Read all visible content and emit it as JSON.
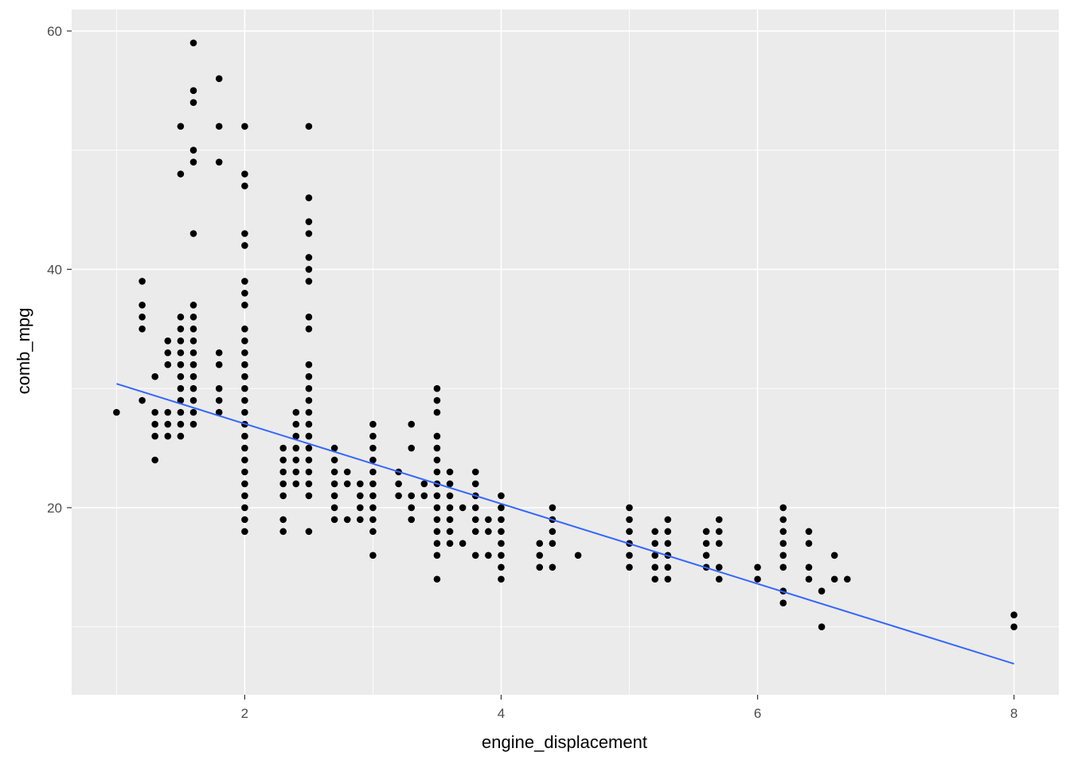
{
  "chart_data": {
    "type": "scatter",
    "title": "",
    "xlabel": "engine_displacement",
    "ylabel": "comb_mpg",
    "xlim": [
      0.65,
      8.35
    ],
    "ylim": [
      4.3,
      61.8
    ],
    "x_ticks": [
      2,
      4,
      6,
      8
    ],
    "y_ticks": [
      20,
      40,
      60
    ],
    "x_ticks_minor": [
      1,
      3,
      5,
      7
    ],
    "y_ticks_minor": [
      10,
      30,
      50
    ],
    "grid": true,
    "legend": "none",
    "colors": {
      "panel": "#EBEBEB",
      "grid": "#FFFFFF",
      "points": "#000000",
      "trend": "#3366FF"
    },
    "points": [
      [
        1.0,
        28
      ],
      [
        1.2,
        39
      ],
      [
        1.2,
        37
      ],
      [
        1.2,
        36
      ],
      [
        1.2,
        35
      ],
      [
        1.2,
        29
      ],
      [
        1.3,
        31
      ],
      [
        1.3,
        28
      ],
      [
        1.3,
        27
      ],
      [
        1.3,
        26
      ],
      [
        1.3,
        24
      ],
      [
        1.4,
        34
      ],
      [
        1.4,
        33
      ],
      [
        1.4,
        32
      ],
      [
        1.4,
        28
      ],
      [
        1.4,
        27
      ],
      [
        1.4,
        26
      ],
      [
        1.5,
        52
      ],
      [
        1.5,
        48
      ],
      [
        1.5,
        36
      ],
      [
        1.5,
        35
      ],
      [
        1.5,
        34
      ],
      [
        1.5,
        33
      ],
      [
        1.5,
        32
      ],
      [
        1.5,
        31
      ],
      [
        1.5,
        30
      ],
      [
        1.5,
        29
      ],
      [
        1.5,
        28
      ],
      [
        1.5,
        27
      ],
      [
        1.5,
        26
      ],
      [
        1.6,
        59
      ],
      [
        1.6,
        55
      ],
      [
        1.6,
        54
      ],
      [
        1.6,
        50
      ],
      [
        1.6,
        49
      ],
      [
        1.6,
        43
      ],
      [
        1.6,
        37
      ],
      [
        1.6,
        36
      ],
      [
        1.6,
        35
      ],
      [
        1.6,
        34
      ],
      [
        1.6,
        33
      ],
      [
        1.6,
        32
      ],
      [
        1.6,
        31
      ],
      [
        1.6,
        30
      ],
      [
        1.6,
        29
      ],
      [
        1.6,
        28
      ],
      [
        1.6,
        27
      ],
      [
        1.8,
        56
      ],
      [
        1.8,
        52
      ],
      [
        1.8,
        49
      ],
      [
        1.8,
        33
      ],
      [
        1.8,
        32
      ],
      [
        1.8,
        30
      ],
      [
        1.8,
        29
      ],
      [
        1.8,
        28
      ],
      [
        2.0,
        52
      ],
      [
        2.0,
        48
      ],
      [
        2.0,
        47
      ],
      [
        2.0,
        43
      ],
      [
        2.0,
        42
      ],
      [
        2.0,
        39
      ],
      [
        2.0,
        38
      ],
      [
        2.0,
        37
      ],
      [
        2.0,
        35
      ],
      [
        2.0,
        34
      ],
      [
        2.0,
        33
      ],
      [
        2.0,
        32
      ],
      [
        2.0,
        31
      ],
      [
        2.0,
        30
      ],
      [
        2.0,
        29
      ],
      [
        2.0,
        28
      ],
      [
        2.0,
        27
      ],
      [
        2.0,
        26
      ],
      [
        2.0,
        25
      ],
      [
        2.0,
        24
      ],
      [
        2.0,
        23
      ],
      [
        2.0,
        22
      ],
      [
        2.0,
        21
      ],
      [
        2.0,
        20
      ],
      [
        2.0,
        19
      ],
      [
        2.0,
        18
      ],
      [
        2.3,
        25
      ],
      [
        2.3,
        24
      ],
      [
        2.3,
        23
      ],
      [
        2.3,
        22
      ],
      [
        2.3,
        21
      ],
      [
        2.3,
        19
      ],
      [
        2.3,
        18
      ],
      [
        2.4,
        28
      ],
      [
        2.4,
        27
      ],
      [
        2.4,
        26
      ],
      [
        2.4,
        25
      ],
      [
        2.4,
        24
      ],
      [
        2.4,
        23
      ],
      [
        2.4,
        22
      ],
      [
        2.5,
        52
      ],
      [
        2.5,
        46
      ],
      [
        2.5,
        44
      ],
      [
        2.5,
        43
      ],
      [
        2.5,
        41
      ],
      [
        2.5,
        40
      ],
      [
        2.5,
        39
      ],
      [
        2.5,
        36
      ],
      [
        2.5,
        35
      ],
      [
        2.5,
        32
      ],
      [
        2.5,
        31
      ],
      [
        2.5,
        30
      ],
      [
        2.5,
        29
      ],
      [
        2.5,
        28
      ],
      [
        2.5,
        27
      ],
      [
        2.5,
        26
      ],
      [
        2.5,
        25
      ],
      [
        2.5,
        24
      ],
      [
        2.5,
        23
      ],
      [
        2.5,
        22
      ],
      [
        2.5,
        21
      ],
      [
        2.5,
        18
      ],
      [
        2.7,
        25
      ],
      [
        2.7,
        24
      ],
      [
        2.7,
        23
      ],
      [
        2.7,
        22
      ],
      [
        2.7,
        21
      ],
      [
        2.7,
        20
      ],
      [
        2.7,
        19
      ],
      [
        2.8,
        23
      ],
      [
        2.8,
        22
      ],
      [
        2.8,
        19
      ],
      [
        2.9,
        22
      ],
      [
        2.9,
        21
      ],
      [
        2.9,
        20
      ],
      [
        2.9,
        19
      ],
      [
        3.0,
        27
      ],
      [
        3.0,
        26
      ],
      [
        3.0,
        25
      ],
      [
        3.0,
        24
      ],
      [
        3.0,
        23
      ],
      [
        3.0,
        22
      ],
      [
        3.0,
        21
      ],
      [
        3.0,
        20
      ],
      [
        3.0,
        19
      ],
      [
        3.0,
        18
      ],
      [
        3.0,
        16
      ],
      [
        3.2,
        23
      ],
      [
        3.2,
        22
      ],
      [
        3.2,
        21
      ],
      [
        3.3,
        27
      ],
      [
        3.3,
        25
      ],
      [
        3.3,
        21
      ],
      [
        3.3,
        20
      ],
      [
        3.3,
        19
      ],
      [
        3.4,
        22
      ],
      [
        3.4,
        21
      ],
      [
        3.5,
        30
      ],
      [
        3.5,
        29
      ],
      [
        3.5,
        28
      ],
      [
        3.5,
        26
      ],
      [
        3.5,
        25
      ],
      [
        3.5,
        24
      ],
      [
        3.5,
        23
      ],
      [
        3.5,
        22
      ],
      [
        3.5,
        21
      ],
      [
        3.5,
        20
      ],
      [
        3.5,
        19
      ],
      [
        3.5,
        18
      ],
      [
        3.5,
        17
      ],
      [
        3.5,
        16
      ],
      [
        3.5,
        14
      ],
      [
        3.6,
        23
      ],
      [
        3.6,
        22
      ],
      [
        3.6,
        21
      ],
      [
        3.6,
        20
      ],
      [
        3.6,
        19
      ],
      [
        3.6,
        18
      ],
      [
        3.6,
        17
      ],
      [
        3.7,
        20
      ],
      [
        3.7,
        17
      ],
      [
        3.8,
        23
      ],
      [
        3.8,
        22
      ],
      [
        3.8,
        21
      ],
      [
        3.8,
        20
      ],
      [
        3.8,
        19
      ],
      [
        3.8,
        18
      ],
      [
        3.8,
        16
      ],
      [
        3.9,
        19
      ],
      [
        3.9,
        18
      ],
      [
        3.9,
        16
      ],
      [
        4.0,
        21
      ],
      [
        4.0,
        20
      ],
      [
        4.0,
        19
      ],
      [
        4.0,
        18
      ],
      [
        4.0,
        17
      ],
      [
        4.0,
        16
      ],
      [
        4.0,
        15
      ],
      [
        4.0,
        14
      ],
      [
        4.3,
        17
      ],
      [
        4.3,
        16
      ],
      [
        4.3,
        15
      ],
      [
        4.4,
        20
      ],
      [
        4.4,
        19
      ],
      [
        4.4,
        18
      ],
      [
        4.4,
        17
      ],
      [
        4.4,
        15
      ],
      [
        4.6,
        16
      ],
      [
        5.0,
        20
      ],
      [
        5.0,
        19
      ],
      [
        5.0,
        18
      ],
      [
        5.0,
        17
      ],
      [
        5.0,
        16
      ],
      [
        5.0,
        15
      ],
      [
        5.2,
        18
      ],
      [
        5.2,
        17
      ],
      [
        5.2,
        16
      ],
      [
        5.2,
        15
      ],
      [
        5.2,
        14
      ],
      [
        5.3,
        19
      ],
      [
        5.3,
        18
      ],
      [
        5.3,
        17
      ],
      [
        5.3,
        16
      ],
      [
        5.3,
        15
      ],
      [
        5.3,
        14
      ],
      [
        5.6,
        18
      ],
      [
        5.6,
        17
      ],
      [
        5.6,
        16
      ],
      [
        5.6,
        15
      ],
      [
        5.7,
        19
      ],
      [
        5.7,
        18
      ],
      [
        5.7,
        17
      ],
      [
        5.7,
        15
      ],
      [
        5.7,
        14
      ],
      [
        6.0,
        15
      ],
      [
        6.0,
        14
      ],
      [
        6.2,
        20
      ],
      [
        6.2,
        19
      ],
      [
        6.2,
        18
      ],
      [
        6.2,
        17
      ],
      [
        6.2,
        16
      ],
      [
        6.2,
        15
      ],
      [
        6.2,
        13
      ],
      [
        6.2,
        12
      ],
      [
        6.4,
        18
      ],
      [
        6.4,
        17
      ],
      [
        6.4,
        15
      ],
      [
        6.4,
        14
      ],
      [
        6.5,
        13
      ],
      [
        6.5,
        10
      ],
      [
        6.6,
        16
      ],
      [
        6.6,
        14
      ],
      [
        6.7,
        14
      ],
      [
        8.0,
        11
      ],
      [
        8.0,
        10
      ]
    ],
    "trend_line": {
      "x": [
        1.0,
        8.0
      ],
      "y": [
        30.4,
        6.9
      ]
    }
  }
}
